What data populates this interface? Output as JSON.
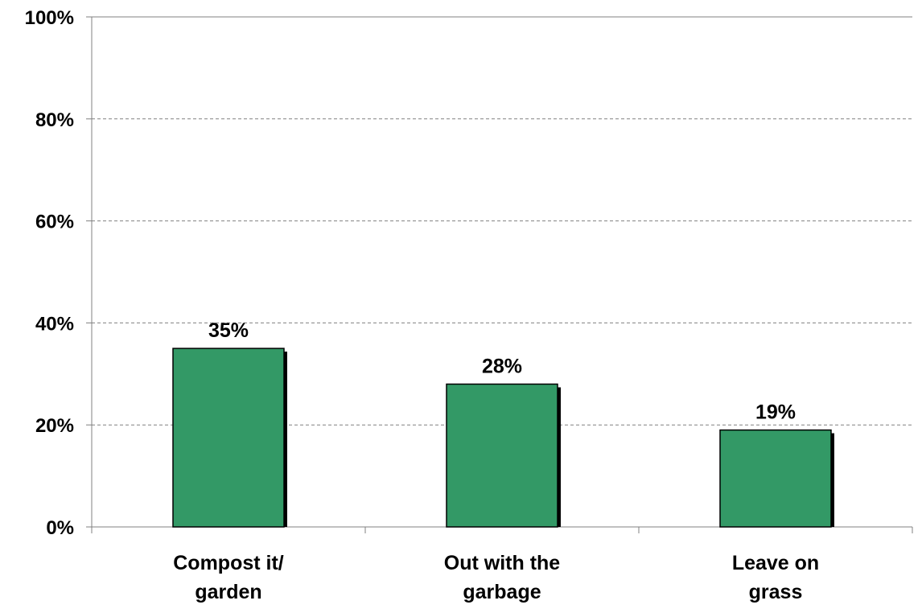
{
  "chart_data": {
    "type": "bar",
    "categories": [
      [
        "Compost it/",
        "garden"
      ],
      [
        "Out with the",
        "garbage"
      ],
      [
        "Leave on",
        "grass"
      ]
    ],
    "values": [
      35,
      28,
      19
    ],
    "data_labels": [
      "35%",
      "28%",
      "19%"
    ],
    "yticks": [
      "0%",
      "20%",
      "40%",
      "60%",
      "80%",
      "100%"
    ],
    "ylim": [
      0,
      100
    ],
    "ytick_step": 20,
    "grid": "dashed horizontal",
    "legend": "none",
    "colors": {
      "bar": "#339966",
      "bar_shadow": "#000000",
      "grid": "#808080",
      "axis": "#808080"
    }
  }
}
